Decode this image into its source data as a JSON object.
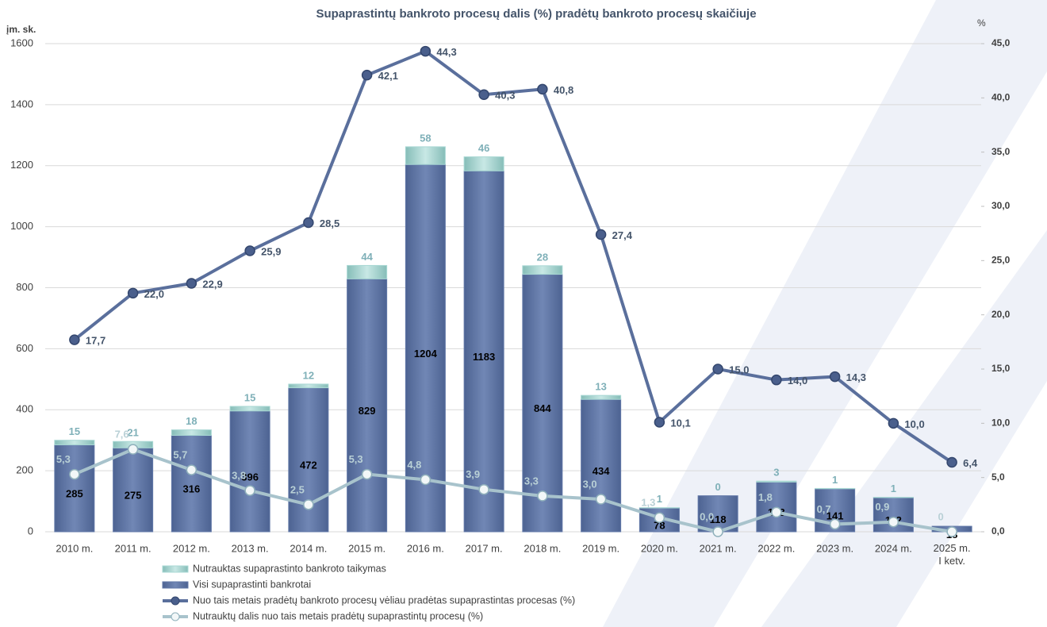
{
  "chart_data": {
    "type": "bar",
    "title": "Supaprastintų bankroto procesų dalis (%) pradėtų bankroto procesų skaičiuje",
    "y_label": "įm. sk.",
    "y2_label": "%",
    "categories": [
      "2010 m.",
      "2011 m.",
      "2012 m.",
      "2013 m.",
      "2014 m.",
      "2015 m.",
      "2016 m.",
      "2017 m.",
      "2018 m.",
      "2019 m.",
      "2020 m.",
      "2021 m.",
      "2022 m.",
      "2023 m.",
      "2024 m.",
      "2025 m.\nI ketv."
    ],
    "ylim": [
      0,
      1600
    ],
    "yticks": [
      0,
      200,
      400,
      600,
      800,
      1000,
      1200,
      1400,
      1600
    ],
    "y2lim": [
      0,
      45
    ],
    "y2ticks": [
      {
        "value": 0,
        "label": "0,0"
      },
      {
        "value": 5,
        "label": "5,0"
      },
      {
        "value": 10,
        "label": "10,0"
      },
      {
        "value": 15,
        "label": "15,0"
      },
      {
        "value": 20,
        "label": "20,0"
      },
      {
        "value": 25,
        "label": "25,0"
      },
      {
        "value": 30,
        "label": "30,0"
      },
      {
        "value": 35,
        "label": "35,0"
      },
      {
        "value": 40,
        "label": "40,0"
      },
      {
        "value": 45,
        "label": "45,0"
      }
    ],
    "grid": true,
    "series": [
      {
        "name": "Nutrauktas supaprastinto bankroto taikymas",
        "type": "bar",
        "color": "#a9d8d4",
        "values": [
          15,
          21,
          18,
          15,
          12,
          44,
          58,
          46,
          28,
          13,
          1,
          0,
          3,
          1,
          1,
          null
        ]
      },
      {
        "name": "Visi supaprastinti bankrotai",
        "type": "bar",
        "color": "#6278a8",
        "values": [
          285,
          275,
          316,
          396,
          472,
          829,
          1204,
          1183,
          844,
          434,
          78,
          118,
          163,
          141,
          112,
          18
        ]
      },
      {
        "name": "Nuo tais metais pradėtų bankroto procesų vėliau pradėtas supaprastintas procesas (%)",
        "type": "line",
        "axis": "y2",
        "color": "#5a6f9c",
        "values": [
          17.7,
          22.0,
          22.9,
          25.9,
          28.5,
          42.1,
          44.3,
          40.3,
          40.8,
          27.4,
          10.1,
          15.0,
          14.0,
          14.3,
          10.0,
          6.4
        ],
        "value_labels": [
          "17,7",
          "22,0",
          "22,9",
          "25,9",
          "28,5",
          "42,1",
          "44,3",
          "40,3",
          "40,8",
          "27,4",
          "10,1",
          "15,0",
          "14,0",
          "14,3",
          "10,0",
          "6,4"
        ]
      },
      {
        "name": "Nutrauktų dalis nuo tais metais pradėtų supaprastintų procesų (%)",
        "type": "line",
        "axis": "y2",
        "color": "#a8c3cc",
        "values": [
          5.3,
          7.6,
          5.7,
          3.8,
          2.5,
          5.3,
          4.8,
          3.9,
          3.3,
          3.0,
          1.3,
          0.0,
          1.8,
          0.7,
          0.9,
          0
        ],
        "value_labels": [
          "5,3",
          "7,6",
          "5,7",
          "3,8",
          "2,5",
          "5,3",
          "4,8",
          "3,9",
          "3,3",
          "3,0",
          "1,3",
          "0,0",
          "1,8",
          "0,7",
          "0,9",
          "0"
        ]
      }
    ]
  }
}
